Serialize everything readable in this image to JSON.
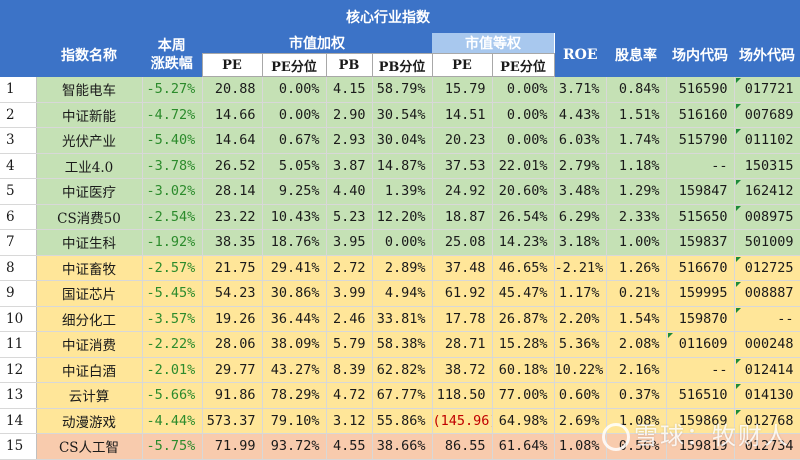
{
  "title": "核心行业指数",
  "headers": {
    "index_name": "指数名称",
    "weekly_change_1": "本周",
    "weekly_change_2": "涨跌幅",
    "market_cap_weighted": "市值加权",
    "equal_weighted": "市值等权",
    "roe": "ROE",
    "dividend_yield": "股息率",
    "onsite_code": "场内代码",
    "offsite_code": "场外代码",
    "pe": "PE",
    "pe_pct": "PE分位",
    "pb": "PB",
    "pb_pct": "PB分位",
    "eq_pe": "PE",
    "eq_pe_pct": "PE分位"
  },
  "rows": [
    {
      "no": "1",
      "name": "智能电车",
      "chg": "-5.27%",
      "pe": "20.88",
      "pe_pct": "0.00%",
      "pb": "4.15",
      "pb_pct": "58.79%",
      "eq_pe": "15.79",
      "eq_pe_pct": "0.00%",
      "roe": "3.71%",
      "div": "0.84%",
      "on": "516590",
      "off": "017721",
      "band": "g"
    },
    {
      "no": "2",
      "name": "中证新能",
      "chg": "-4.72%",
      "pe": "14.66",
      "pe_pct": "0.00%",
      "pb": "2.90",
      "pb_pct": "30.54%",
      "eq_pe": "14.51",
      "eq_pe_pct": "0.00%",
      "roe": "4.43%",
      "div": "1.51%",
      "on": "516160",
      "off": "007689",
      "band": "g"
    },
    {
      "no": "3",
      "name": "光伏产业",
      "chg": "-5.40%",
      "pe": "14.64",
      "pe_pct": "0.67%",
      "pb": "2.93",
      "pb_pct": "30.04%",
      "eq_pe": "20.23",
      "eq_pe_pct": "0.00%",
      "roe": "6.03%",
      "div": "1.74%",
      "on": "515790",
      "off": "011102",
      "band": "g"
    },
    {
      "no": "4",
      "name": "工业4.0",
      "chg": "-3.78%",
      "pe": "26.52",
      "pe_pct": "5.05%",
      "pb": "3.87",
      "pb_pct": "14.87%",
      "eq_pe": "37.53",
      "eq_pe_pct": "22.01%",
      "roe": "2.79%",
      "div": "1.18%",
      "on": "--",
      "off": "150315",
      "band": "g"
    },
    {
      "no": "5",
      "name": "中证医疗",
      "chg": "-3.02%",
      "pe": "28.14",
      "pe_pct": "9.25%",
      "pb": "4.40",
      "pb_pct": "1.39%",
      "eq_pe": "24.92",
      "eq_pe_pct": "20.60%",
      "roe": "3.48%",
      "div": "1.29%",
      "on": "159847",
      "off": "162412",
      "band": "g"
    },
    {
      "no": "6",
      "name": "CS消费50",
      "chg": "-2.54%",
      "pe": "23.22",
      "pe_pct": "10.43%",
      "pb": "5.23",
      "pb_pct": "12.20%",
      "eq_pe": "18.87",
      "eq_pe_pct": "26.54%",
      "roe": "6.29%",
      "div": "2.33%",
      "on": "515650",
      "off": "008975",
      "band": "g"
    },
    {
      "no": "7",
      "name": "中证生科",
      "chg": "-1.92%",
      "pe": "38.35",
      "pe_pct": "18.76%",
      "pb": "3.95",
      "pb_pct": "0.00%",
      "eq_pe": "25.08",
      "eq_pe_pct": "14.23%",
      "roe": "3.18%",
      "div": "1.00%",
      "on": "159837",
      "off": "501009",
      "band": "g"
    },
    {
      "no": "8",
      "name": "中证畜牧",
      "chg": "-2.57%",
      "pe": "21.75",
      "pe_pct": "29.41%",
      "pb": "2.72",
      "pb_pct": "2.89%",
      "eq_pe": "37.48",
      "eq_pe_pct": "46.65%",
      "roe": "-2.21%",
      "div": "1.26%",
      "on": "516670",
      "off": "012725",
      "band": "y"
    },
    {
      "no": "9",
      "name": "国证芯片",
      "chg": "-5.45%",
      "pe": "54.23",
      "pe_pct": "30.86%",
      "pb": "3.99",
      "pb_pct": "4.94%",
      "eq_pe": "61.92",
      "eq_pe_pct": "45.47%",
      "roe": "1.17%",
      "div": "0.21%",
      "on": "159995",
      "off": "008887",
      "band": "y"
    },
    {
      "no": "10",
      "name": "细分化工",
      "chg": "-3.57%",
      "pe": "19.26",
      "pe_pct": "36.44%",
      "pb": "2.46",
      "pb_pct": "33.81%",
      "eq_pe": "17.78",
      "eq_pe_pct": "26.87%",
      "roe": "2.20%",
      "div": "1.54%",
      "on": "159870",
      "off": "--",
      "band": "y"
    },
    {
      "no": "11",
      "name": "中证消费",
      "chg": "-2.22%",
      "pe": "28.06",
      "pe_pct": "38.09%",
      "pb": "5.79",
      "pb_pct": "58.38%",
      "eq_pe": "28.71",
      "eq_pe_pct": "15.28%",
      "roe": "5.36%",
      "div": "2.08%",
      "on": "011609",
      "off": "000248",
      "band": "y"
    },
    {
      "no": "12",
      "name": "中证白酒",
      "chg": "-2.01%",
      "pe": "29.77",
      "pe_pct": "43.27%",
      "pb": "8.39",
      "pb_pct": "62.82%",
      "eq_pe": "38.72",
      "eq_pe_pct": "60.18%",
      "roe": "10.22%",
      "div": "2.16%",
      "on": "--",
      "off": "012414",
      "band": "y"
    },
    {
      "no": "13",
      "name": "云计算",
      "chg": "-5.66%",
      "pe": "91.86",
      "pe_pct": "78.29%",
      "pb": "4.72",
      "pb_pct": "67.77%",
      "eq_pe": "118.50",
      "eq_pe_pct": "77.00%",
      "roe": "0.60%",
      "div": "0.37%",
      "on": "516510",
      "off": "014130",
      "band": "y"
    },
    {
      "no": "14",
      "name": "动漫游戏",
      "chg": "-4.44%",
      "pe": "573.37",
      "pe_pct": "79.10%",
      "pb": "3.12",
      "pb_pct": "55.86%",
      "eq_pe": "(145.96)",
      "eq_pe_pct": "64.98%",
      "roe": "2.69%",
      "div": "1.08%",
      "on": "159869",
      "off": "012768",
      "band": "y"
    },
    {
      "no": "15",
      "name": "CS人工智",
      "chg": "-5.75%",
      "pe": "71.99",
      "pe_pct": "93.72%",
      "pb": "4.55",
      "pb_pct": "38.66%",
      "eq_pe": "86.55",
      "eq_pe_pct": "61.64%",
      "roe": "1.08%",
      "div": "0.56%",
      "on": "159819",
      "off": "012734",
      "band": "o"
    }
  ],
  "watermark": "雪球：牧财人",
  "colors": {
    "header": "#3c73c7",
    "green": "#c5e1b5",
    "yellow": "#ffe699",
    "orange": "#f8cbad",
    "change": "#2c8b2c",
    "negative": "#c00000"
  }
}
